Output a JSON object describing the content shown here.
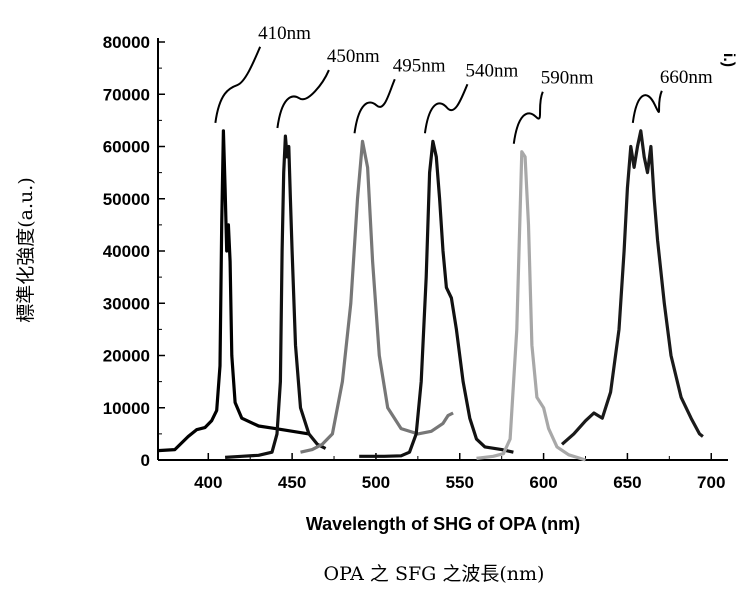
{
  "chart_data": {
    "type": "line",
    "title": "",
    "xlabel": "Wavelength of SHG of OPA (nm)",
    "ylabel": "標準化強度(a.u.)",
    "caption": "OPA 之 SFG 之波長(nm)",
    "corner_mark": "i.)",
    "xlim": [
      370,
      710
    ],
    "ylim": [
      0,
      80000
    ],
    "x_ticks": [
      400,
      450,
      500,
      550,
      600,
      650,
      700
    ],
    "y_ticks": [
      0,
      10000,
      20000,
      30000,
      40000,
      50000,
      60000,
      70000,
      80000
    ],
    "grid": false,
    "series": [
      {
        "name": "410nm",
        "color": "#000000",
        "points": [
          [
            370,
            1800
          ],
          [
            380,
            2000
          ],
          [
            388,
            4500
          ],
          [
            393,
            5800
          ],
          [
            398,
            6200
          ],
          [
            402,
            7500
          ],
          [
            405,
            9500
          ],
          [
            407,
            18000
          ],
          [
            408,
            45000
          ],
          [
            409,
            63000
          ],
          [
            410,
            52000
          ],
          [
            411,
            40000
          ],
          [
            412,
            45000
          ],
          [
            413,
            38000
          ],
          [
            414,
            20000
          ],
          [
            416,
            11000
          ],
          [
            420,
            8000
          ],
          [
            430,
            6500
          ],
          [
            440,
            6000
          ],
          [
            460,
            5000
          ]
        ]
      },
      {
        "name": "450nm",
        "color": "#111111",
        "points": [
          [
            410,
            500
          ],
          [
            420,
            700
          ],
          [
            430,
            900
          ],
          [
            438,
            1500
          ],
          [
            441,
            5000
          ],
          [
            443,
            15000
          ],
          [
            444,
            40000
          ],
          [
            445,
            55000
          ],
          [
            446,
            62000
          ],
          [
            447,
            58000
          ],
          [
            448,
            60000
          ],
          [
            449,
            50000
          ],
          [
            450,
            40000
          ],
          [
            452,
            22000
          ],
          [
            455,
            10000
          ],
          [
            460,
            5000
          ],
          [
            465,
            3000
          ],
          [
            470,
            2200
          ]
        ]
      },
      {
        "name": "495nm",
        "color": "#777777",
        "points": [
          [
            455,
            1500
          ],
          [
            462,
            2000
          ],
          [
            468,
            3000
          ],
          [
            474,
            5000
          ],
          [
            480,
            15000
          ],
          [
            485,
            30000
          ],
          [
            489,
            50000
          ],
          [
            492,
            61000
          ],
          [
            495,
            56000
          ],
          [
            498,
            38000
          ],
          [
            502,
            20000
          ],
          [
            507,
            10000
          ],
          [
            515,
            6000
          ],
          [
            525,
            5000
          ],
          [
            533,
            5500
          ],
          [
            540,
            7000
          ],
          [
            543,
            8500
          ],
          [
            546,
            9000
          ]
        ]
      },
      {
        "name": "540nm",
        "color": "#111111",
        "points": [
          [
            490,
            700
          ],
          [
            505,
            700
          ],
          [
            515,
            800
          ],
          [
            520,
            1500
          ],
          [
            524,
            5000
          ],
          [
            527,
            15000
          ],
          [
            530,
            35000
          ],
          [
            532,
            55000
          ],
          [
            534,
            61000
          ],
          [
            536,
            58000
          ],
          [
            538,
            50000
          ],
          [
            540,
            40000
          ],
          [
            542,
            33000
          ],
          [
            545,
            31000
          ],
          [
            548,
            25000
          ],
          [
            552,
            15000
          ],
          [
            556,
            8000
          ],
          [
            560,
            4000
          ],
          [
            565,
            2500
          ],
          [
            575,
            2000
          ],
          [
            582,
            1500
          ]
        ]
      },
      {
        "name": "590nm",
        "color": "#a8a8a8",
        "points": [
          [
            560,
            300
          ],
          [
            570,
            700
          ],
          [
            576,
            1200
          ],
          [
            580,
            4000
          ],
          [
            584,
            25000
          ],
          [
            587,
            59000
          ],
          [
            589,
            58000
          ],
          [
            591,
            45000
          ],
          [
            593,
            22000
          ],
          [
            596,
            12000
          ],
          [
            600,
            10000
          ],
          [
            603,
            6000
          ],
          [
            608,
            2500
          ],
          [
            615,
            1000
          ],
          [
            620,
            500
          ],
          [
            625,
            0
          ]
        ]
      },
      {
        "name": "660nm",
        "color": "#1a1a1a",
        "points": [
          [
            611,
            3000
          ],
          [
            618,
            5000
          ],
          [
            625,
            7500
          ],
          [
            630,
            9000
          ],
          [
            635,
            8000
          ],
          [
            640,
            13000
          ],
          [
            645,
            25000
          ],
          [
            648,
            40000
          ],
          [
            650,
            52000
          ],
          [
            652,
            60000
          ],
          [
            654,
            56000
          ],
          [
            656,
            60000
          ],
          [
            658,
            63000
          ],
          [
            660,
            58000
          ],
          [
            662,
            55000
          ],
          [
            664,
            60000
          ],
          [
            666,
            50000
          ],
          [
            668,
            42000
          ],
          [
            672,
            30000
          ],
          [
            676,
            20000
          ],
          [
            682,
            12000
          ],
          [
            688,
            8000
          ],
          [
            693,
            5000
          ],
          [
            695,
            4500
          ]
        ]
      }
    ]
  }
}
